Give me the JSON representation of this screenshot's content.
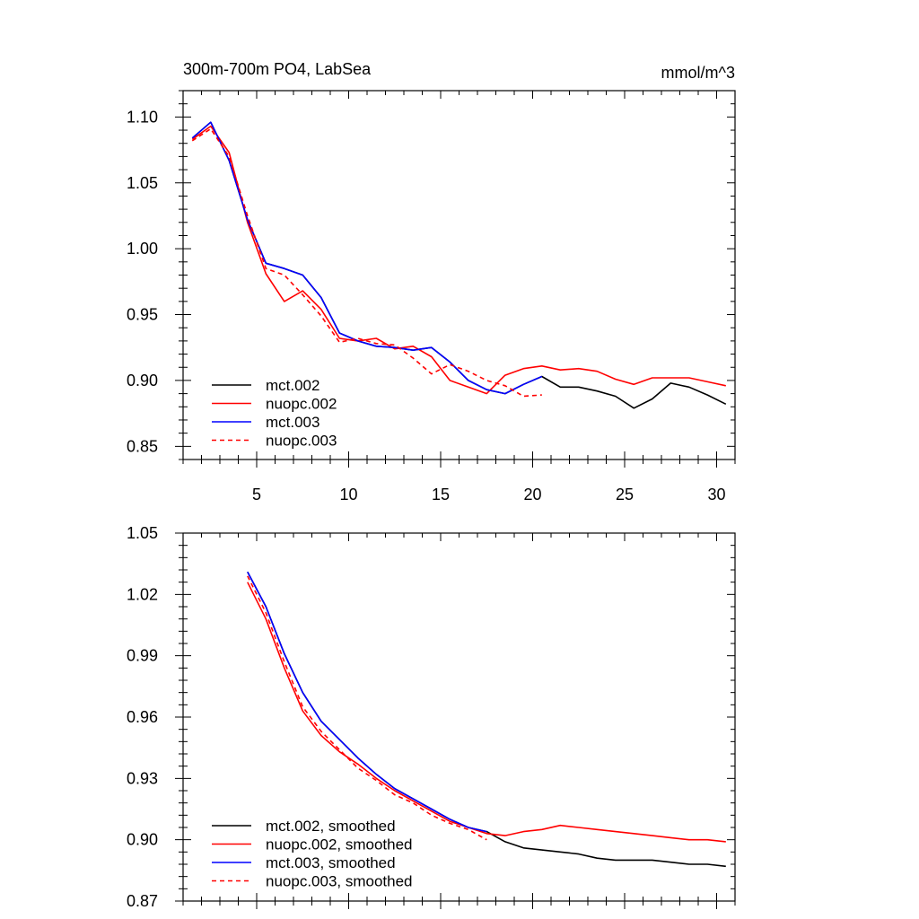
{
  "figure": {
    "title_left": "300m-700m PO4, LabSea",
    "title_right": "mmol/m^3"
  },
  "chart_data": [
    {
      "type": "line",
      "title": "300m-700m PO4, LabSea",
      "units_label": "mmol/m^3",
      "xlim": [
        1,
        31
      ],
      "ylim": [
        0.84,
        1.12
      ],
      "xticks": [
        5,
        10,
        15,
        20,
        25,
        30
      ],
      "yticks": [
        0.85,
        0.9,
        0.95,
        1.0,
        1.05,
        1.1
      ],
      "yticks_labels": [
        "0.85",
        "0.90",
        "0.95",
        "1.00",
        "1.05",
        "1.10"
      ],
      "legend_position": "bottom-left",
      "series": [
        {
          "name": "mct.002",
          "color": "#000000",
          "dash": "solid",
          "x": [
            1.5,
            2.5,
            3.5,
            4.5,
            5.5,
            6.5,
            7.5,
            8.5,
            9.5,
            10.5,
            11.5,
            12.5,
            13.5,
            14.5,
            15.5,
            16.5,
            17.5,
            18.5,
            19.5,
            20.5,
            21.5,
            22.5,
            23.5,
            24.5,
            25.5,
            26.5,
            27.5,
            28.5,
            29.5,
            30.5
          ],
          "y": [
            1.084,
            1.096,
            1.067,
            1.022,
            0.989,
            0.985,
            0.98,
            0.963,
            0.936,
            0.93,
            0.926,
            0.925,
            0.923,
            0.925,
            0.914,
            0.9,
            0.893,
            0.89,
            0.897,
            0.903,
            0.895,
            0.895,
            0.892,
            0.888,
            0.879,
            0.886,
            0.898,
            0.895,
            0.889,
            0.882
          ]
        },
        {
          "name": "nuopc.002",
          "color": "#ff0000",
          "dash": "solid",
          "x": [
            1.5,
            2.5,
            3.5,
            4.5,
            5.5,
            6.5,
            7.5,
            8.5,
            9.5,
            10.5,
            11.5,
            12.5,
            13.5,
            14.5,
            15.5,
            16.5,
            17.5,
            18.5,
            19.5,
            20.5,
            21.5,
            22.5,
            23.5,
            24.5,
            25.5,
            26.5,
            27.5,
            28.5,
            29.5,
            30.5
          ],
          "y": [
            1.083,
            1.093,
            1.073,
            1.02,
            0.981,
            0.96,
            0.968,
            0.954,
            0.932,
            0.93,
            0.932,
            0.924,
            0.926,
            0.918,
            0.9,
            0.895,
            0.89,
            0.904,
            0.909,
            0.911,
            0.908,
            0.909,
            0.907,
            0.901,
            0.897,
            0.902,
            0.902,
            0.902,
            0.899,
            0.896
          ]
        },
        {
          "name": "mct.003",
          "color": "#0000ff",
          "dash": "solid",
          "x": [
            1.5,
            2.5,
            3.5,
            4.5,
            5.5,
            6.5,
            7.5,
            8.5,
            9.5,
            10.5,
            11.5,
            12.5,
            13.5,
            14.5,
            15.5,
            16.5,
            17.5,
            18.5,
            19.5,
            20.5
          ],
          "y": [
            1.084,
            1.096,
            1.067,
            1.022,
            0.989,
            0.985,
            0.98,
            0.963,
            0.936,
            0.93,
            0.926,
            0.925,
            0.923,
            0.925,
            0.914,
            0.9,
            0.893,
            0.89,
            0.897,
            0.903
          ]
        },
        {
          "name": "nuopc.003",
          "color": "#ff0000",
          "dash": "dashed",
          "x": [
            1.5,
            2.5,
            3.5,
            4.5,
            5.5,
            6.5,
            7.5,
            8.5,
            9.5,
            10.5,
            11.5,
            12.5,
            13.5,
            14.5,
            15.5,
            16.5,
            17.5,
            18.5,
            19.5,
            20.5
          ],
          "y": [
            1.082,
            1.091,
            1.07,
            1.025,
            0.985,
            0.98,
            0.965,
            0.949,
            0.929,
            0.932,
            0.928,
            0.927,
            0.917,
            0.905,
            0.912,
            0.907,
            0.9,
            0.896,
            0.888,
            0.889
          ]
        }
      ]
    },
    {
      "type": "line",
      "xlim": [
        1,
        31
      ],
      "ylim": [
        0.87,
        1.05
      ],
      "xticks": [
        5,
        10,
        15,
        20,
        25,
        30
      ],
      "yticks": [
        0.87,
        0.9,
        0.93,
        0.96,
        0.99,
        1.02,
        1.05
      ],
      "yticks_labels": [
        "0.87",
        "0.90",
        "0.93",
        "0.96",
        "0.99",
        "1.02",
        "1.05"
      ],
      "legend_position": "bottom-left",
      "series": [
        {
          "name": "mct.002, smoothed",
          "color": "#000000",
          "dash": "solid",
          "x": [
            4.5,
            5.5,
            6.5,
            7.5,
            8.5,
            9.5,
            10.5,
            11.5,
            12.5,
            13.5,
            14.5,
            15.5,
            16.5,
            17.5,
            18.5,
            19.5,
            20.5,
            21.5,
            22.5,
            23.5,
            24.5,
            25.5,
            26.5,
            27.5,
            28.5,
            29.5,
            30.5
          ],
          "y": [
            1.031,
            1.014,
            0.991,
            0.972,
            0.958,
            0.949,
            0.94,
            0.932,
            0.925,
            0.92,
            0.915,
            0.91,
            0.906,
            0.904,
            0.899,
            0.896,
            0.895,
            0.894,
            0.893,
            0.891,
            0.89,
            0.89,
            0.89,
            0.889,
            0.888,
            0.888,
            0.887
          ]
        },
        {
          "name": "nuopc.002, smoothed",
          "color": "#ff0000",
          "dash": "solid",
          "x": [
            4.5,
            5.5,
            6.5,
            7.5,
            8.5,
            9.5,
            10.5,
            11.5,
            12.5,
            13.5,
            14.5,
            15.5,
            16.5,
            17.5,
            18.5,
            19.5,
            20.5,
            21.5,
            22.5,
            23.5,
            24.5,
            25.5,
            26.5,
            27.5,
            28.5,
            29.5,
            30.5
          ],
          "y": [
            1.026,
            1.008,
            0.984,
            0.963,
            0.951,
            0.943,
            0.937,
            0.93,
            0.924,
            0.919,
            0.914,
            0.909,
            0.906,
            0.903,
            0.902,
            0.904,
            0.905,
            0.907,
            0.906,
            0.905,
            0.904,
            0.903,
            0.902,
            0.901,
            0.9,
            0.9,
            0.899
          ]
        },
        {
          "name": "mct.003, smoothed",
          "color": "#0000ff",
          "dash": "solid",
          "x": [
            4.5,
            5.5,
            6.5,
            7.5,
            8.5,
            9.5,
            10.5,
            11.5,
            12.5,
            13.5,
            14.5,
            15.5,
            16.5,
            17.5
          ],
          "y": [
            1.031,
            1.014,
            0.991,
            0.972,
            0.958,
            0.949,
            0.94,
            0.932,
            0.925,
            0.92,
            0.915,
            0.91,
            0.906,
            0.904
          ]
        },
        {
          "name": "nuopc.003, smoothed",
          "color": "#ff0000",
          "dash": "dashed",
          "x": [
            4.5,
            5.5,
            6.5,
            7.5,
            8.5,
            9.5,
            10.5,
            11.5,
            12.5,
            13.5,
            14.5,
            15.5,
            16.5,
            17.5
          ],
          "y": [
            1.029,
            1.011,
            0.987,
            0.965,
            0.953,
            0.944,
            0.935,
            0.929,
            0.922,
            0.918,
            0.912,
            0.908,
            0.905,
            0.9
          ]
        }
      ]
    }
  ]
}
